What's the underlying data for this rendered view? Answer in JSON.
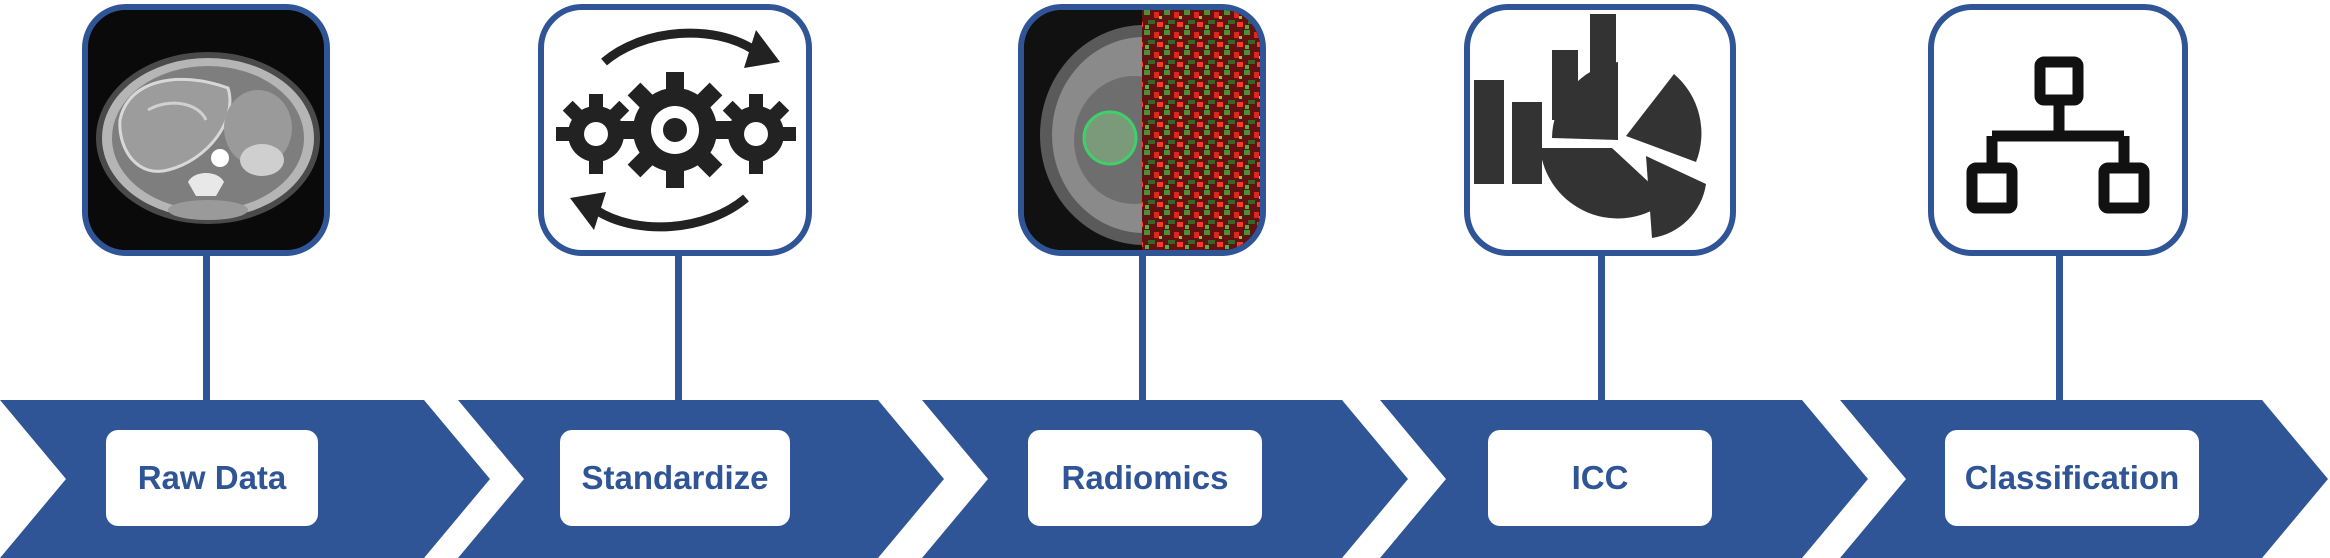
{
  "colors": {
    "primary": "#2f5597",
    "background": "#ffffff",
    "icon": "#222222"
  },
  "steps": [
    {
      "label": "Raw Data",
      "icon": "ct-scan-image"
    },
    {
      "label": "Standardize",
      "icon": "gears-cycle-icon"
    },
    {
      "label": "Radiomics",
      "icon": "mri-feature-heatmap-image"
    },
    {
      "label": "ICC",
      "icon": "chart-icon"
    },
    {
      "label": "Classification",
      "icon": "hierarchy-icon"
    }
  ]
}
